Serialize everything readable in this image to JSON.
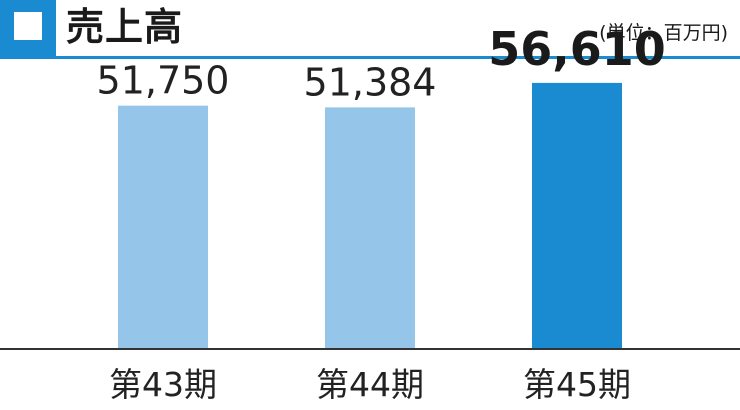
{
  "header": {
    "title": "売上高",
    "unit": "(単位：百万円)"
  },
  "colors": {
    "accent": "#1a8bd1",
    "bar": "#95c6ea",
    "bar_highlight": "#1a8bd1",
    "axis": "#333333"
  },
  "chart_data": {
    "type": "bar",
    "title": "売上高",
    "unit": "(単位：百万円)",
    "categories": [
      "第43期",
      "第44期",
      "第45期"
    ],
    "values": [
      51750,
      51384,
      56610
    ],
    "value_labels": [
      "51,750",
      "51,384",
      "56,610"
    ],
    "highlight_index": 2,
    "ylim": [
      0,
      61500
    ],
    "grid": false,
    "legend": "none"
  }
}
